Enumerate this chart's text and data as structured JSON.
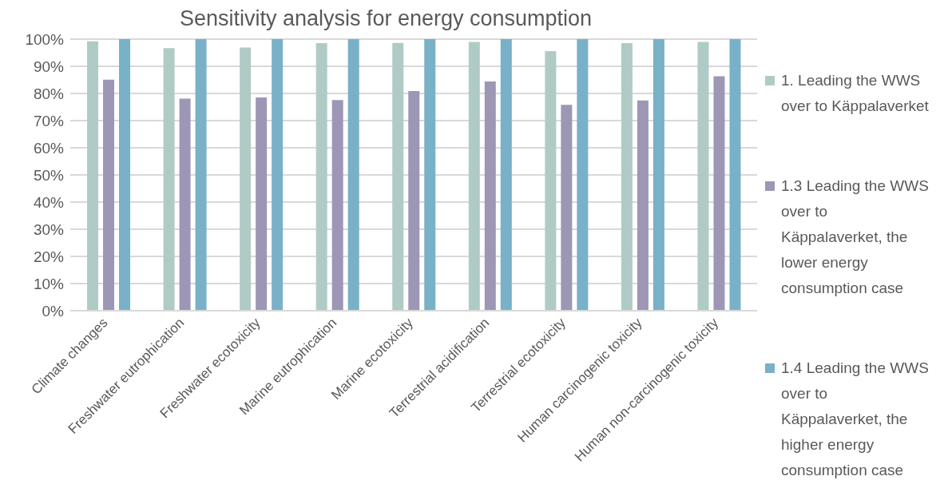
{
  "chart_data": {
    "type": "bar",
    "title": "Sensitivity analysis for energy consumption",
    "categories": [
      "Climate changes",
      "Freshwater eutrophication",
      "Freshwater ecotoxicity",
      "Marine eutrophication",
      "Marine ecotoxicity",
      "Terrestrial acidification",
      "Terrestrial ecotoxicity",
      "Human carcinogenic toxicity",
      "Human non-carcinogenic toxicity"
    ],
    "series": [
      {
        "name": "1. Leading the WWS over to Käppalaverket",
        "color": "#b0cbc6",
        "values": [
          99.2,
          96.7,
          96.9,
          98.5,
          98.6,
          99.0,
          95.6,
          98.5,
          99.0
        ]
      },
      {
        "name": "1.3  Leading the WWS over to Käppalaverket, the lower energy consumption case",
        "color": "#9d97b5",
        "values": [
          85.1,
          78.1,
          78.5,
          77.6,
          80.9,
          84.4,
          75.8,
          77.4,
          86.3
        ]
      },
      {
        "name": "1.4  Leading the WWS over to Käppalaverket, the higher energy consumption case",
        "color": "#78b1c8",
        "values": [
          100,
          100,
          100,
          100,
          100,
          100,
          100,
          100,
          100
        ]
      }
    ],
    "ylim": [
      0,
      100
    ],
    "yticks": [
      {
        "value": 0,
        "label": "0%"
      },
      {
        "value": 10,
        "label": "10%"
      },
      {
        "value": 20,
        "label": "20%"
      },
      {
        "value": 30,
        "label": "30%"
      },
      {
        "value": 40,
        "label": "40%"
      },
      {
        "value": 50,
        "label": "50%"
      },
      {
        "value": 60,
        "label": "60%"
      },
      {
        "value": 70,
        "label": "70%"
      },
      {
        "value": 80,
        "label": "80%"
      },
      {
        "value": 90,
        "label": "90%"
      },
      {
        "value": 100,
        "label": "100%"
      }
    ],
    "grid": "y",
    "legend": "right"
  }
}
